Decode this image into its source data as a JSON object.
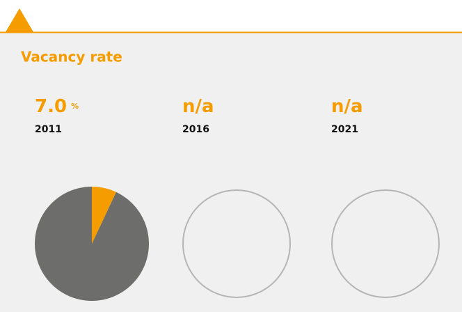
{
  "title": "Vacancy rate",
  "color": "#f59c00",
  "rest_color": "#6d6d6b",
  "panels": [
    {
      "value": 7.0,
      "value_label": "7.0",
      "unit": "%",
      "year": "2011"
    },
    {
      "value_label": "n/a",
      "year": "2016"
    },
    {
      "value_label": "n/a",
      "year": "2021"
    }
  ]
}
